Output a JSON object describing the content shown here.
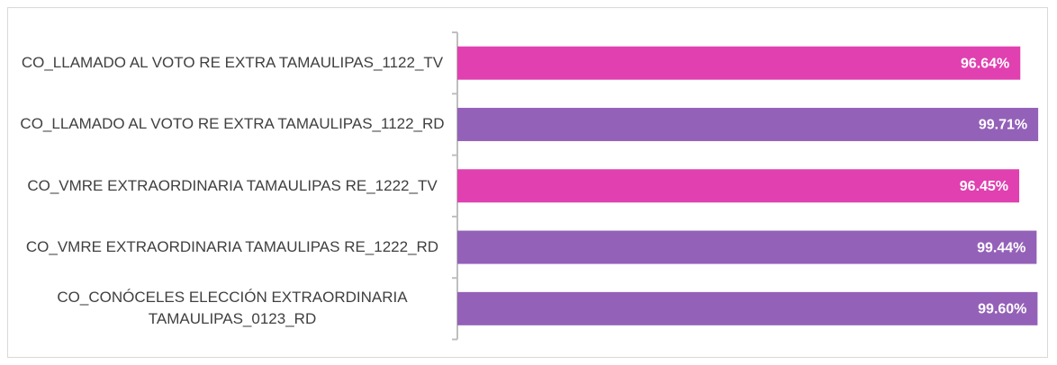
{
  "chart_data": {
    "type": "bar",
    "orientation": "horizontal",
    "categories": [
      "CO_LLAMADO AL VOTO RE EXTRA TAMAULIPAS_1122_TV",
      "CO_LLAMADO AL VOTO RE EXTRA TAMAULIPAS_1122_RD",
      "CO_VMRE EXTRAORDINARIA TAMAULIPAS RE_1222_TV",
      "CO_VMRE EXTRAORDINARIA TAMAULIPAS RE_1222_RD",
      "CO_CONÓCELES ELECCIÓN EXTRAORDINARIA TAMAULIPAS_0123_RD"
    ],
    "values": [
      96.64,
      99.71,
      96.45,
      99.44,
      99.6
    ],
    "value_labels": [
      "96.64%",
      "99.71%",
      "96.45%",
      "99.44%",
      "99.60%"
    ],
    "colors": [
      "#e040b0",
      "#9461b8",
      "#e040b0",
      "#9461b8",
      "#9461b8"
    ]
  }
}
